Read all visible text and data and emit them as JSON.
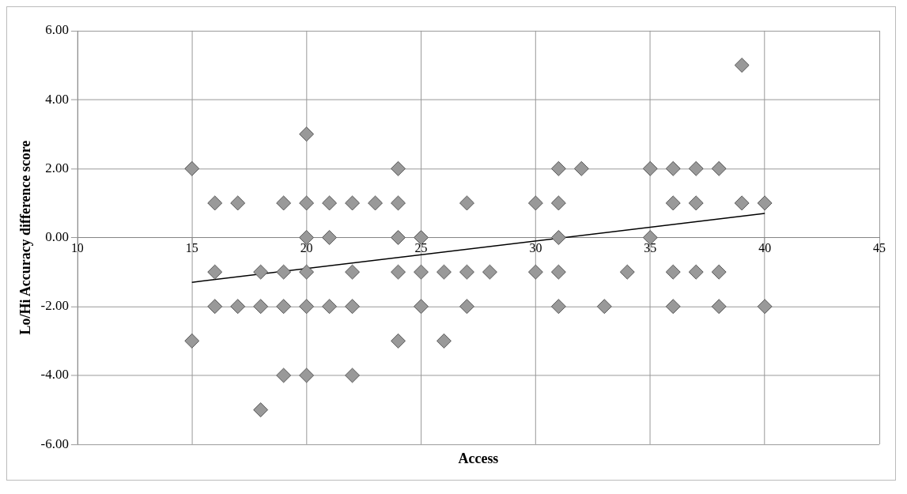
{
  "chart_data": {
    "type": "scatter",
    "xlabel": "Access",
    "ylabel": "Lo/Hi Accuracy difference score",
    "xlim": [
      10,
      45
    ],
    "xticks": [
      10,
      15,
      20,
      25,
      30,
      35,
      40,
      45
    ],
    "ylim": [
      -6,
      6
    ],
    "yticks": [
      {
        "value": -6,
        "label": "-6.00"
      },
      {
        "value": -4,
        "label": "-4.00"
      },
      {
        "value": -2,
        "label": "-2.00"
      },
      {
        "value": 0,
        "label": "0.00"
      },
      {
        "value": 2,
        "label": "2.00"
      },
      {
        "value": 4,
        "label": "4.00"
      },
      {
        "value": 6,
        "label": "6.00"
      }
    ],
    "grid": true,
    "legend": false,
    "marker": "diamond",
    "series": [
      {
        "type": "scatter",
        "color": "#999999",
        "x": [
          15,
          15,
          16,
          16,
          16,
          17,
          17,
          18,
          18,
          18,
          19,
          19,
          19,
          19,
          20,
          20,
          20,
          20,
          20,
          20,
          21,
          21,
          21,
          22,
          22,
          22,
          22,
          23,
          24,
          24,
          24,
          24,
          24,
          25,
          25,
          25,
          26,
          26,
          27,
          27,
          27,
          28,
          30,
          30,
          31,
          31,
          31,
          31,
          31,
          32,
          33,
          34,
          35,
          35,
          36,
          36,
          36,
          36,
          37,
          37,
          37,
          38,
          38,
          38,
          39,
          39,
          40,
          40
        ],
        "values": [
          2,
          -3,
          1,
          -1,
          -2,
          1,
          -2,
          -1,
          -2,
          -5,
          1,
          -1,
          -2,
          -4,
          3,
          1,
          0,
          -1,
          -2,
          -4,
          1,
          0,
          -2,
          1,
          -1,
          -2,
          -4,
          1,
          2,
          1,
          0,
          -1,
          -3,
          0,
          -1,
          -2,
          -1,
          -3,
          1,
          -1,
          -2,
          -1,
          1,
          -1,
          2,
          1,
          0,
          -1,
          -2,
          2,
          -2,
          -1,
          2,
          0,
          2,
          1,
          -1,
          -2,
          2,
          1,
          -1,
          2,
          -1,
          -2,
          5,
          1,
          1,
          -2
        ]
      },
      {
        "type": "line",
        "color": "#000000",
        "marker": "none",
        "x": [
          15,
          40
        ],
        "values": [
          -1.3,
          0.7
        ]
      }
    ]
  }
}
